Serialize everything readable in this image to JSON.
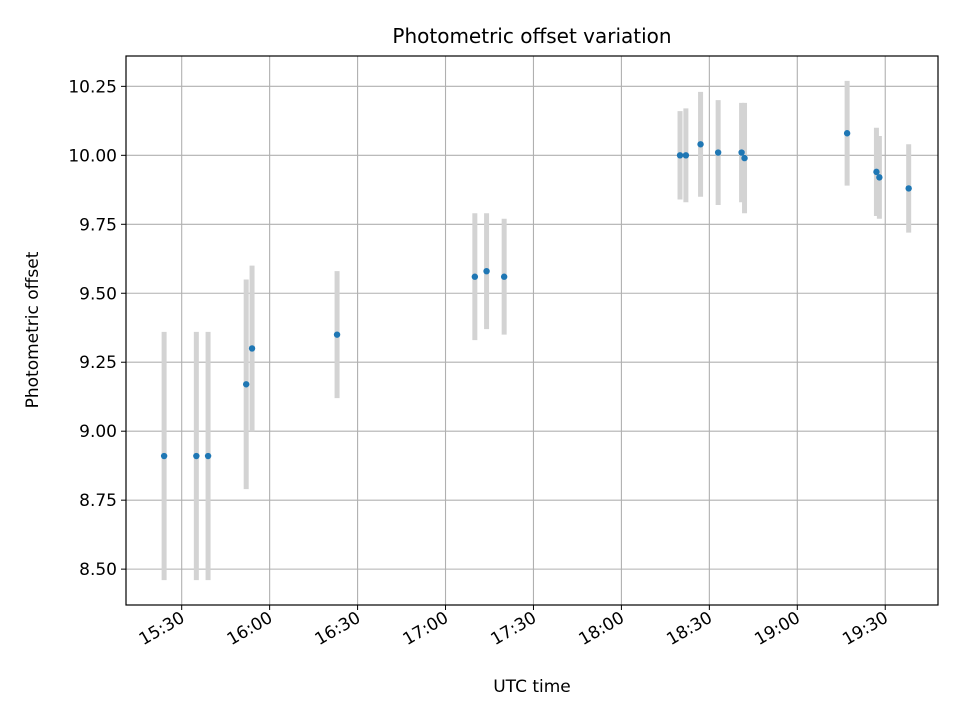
{
  "chart_data": {
    "type": "scatter",
    "title": "Photometric offset variation",
    "xlabel": "UTC time",
    "ylabel": "Photometric offset",
    "x_ticks": [
      "15:30",
      "16:00",
      "16:30",
      "17:00",
      "17:30",
      "18:00",
      "18:30",
      "19:00",
      "19:30"
    ],
    "y_ticks": [
      "8.50",
      "8.75",
      "9.00",
      "9.25",
      "9.50",
      "9.75",
      "10.00",
      "10.25"
    ],
    "xlim": [
      "15:11",
      "19:48"
    ],
    "ylim": [
      8.37,
      10.36
    ],
    "grid": true,
    "legend": "none",
    "marker_color": "#1f77b4",
    "errorbar_color": "#d3d3d3",
    "points": [
      {
        "x": "15:24",
        "y": 8.91,
        "err": 0.45
      },
      {
        "x": "15:35",
        "y": 8.91,
        "err": 0.45
      },
      {
        "x": "15:39",
        "y": 8.91,
        "err": 0.45
      },
      {
        "x": "15:52",
        "y": 9.17,
        "err": 0.38
      },
      {
        "x": "15:54",
        "y": 9.3,
        "err": 0.3
      },
      {
        "x": "16:23",
        "y": 9.35,
        "err": 0.23
      },
      {
        "x": "17:10",
        "y": 9.56,
        "err": 0.23
      },
      {
        "x": "17:14",
        "y": 9.58,
        "err": 0.21
      },
      {
        "x": "17:20",
        "y": 9.56,
        "err": 0.21
      },
      {
        "x": "18:20",
        "y": 10.0,
        "err": 0.16
      },
      {
        "x": "18:22",
        "y": 10.0,
        "err": 0.17
      },
      {
        "x": "18:27",
        "y": 10.04,
        "err": 0.19
      },
      {
        "x": "18:33",
        "y": 10.01,
        "err": 0.19
      },
      {
        "x": "18:41",
        "y": 10.01,
        "err": 0.18
      },
      {
        "x": "18:42",
        "y": 9.99,
        "err": 0.2
      },
      {
        "x": "19:17",
        "y": 10.08,
        "err": 0.19
      },
      {
        "x": "19:27",
        "y": 9.94,
        "err": 0.16
      },
      {
        "x": "19:28",
        "y": 9.92,
        "err": 0.15
      },
      {
        "x": "19:38",
        "y": 9.88,
        "err": 0.16
      }
    ]
  }
}
